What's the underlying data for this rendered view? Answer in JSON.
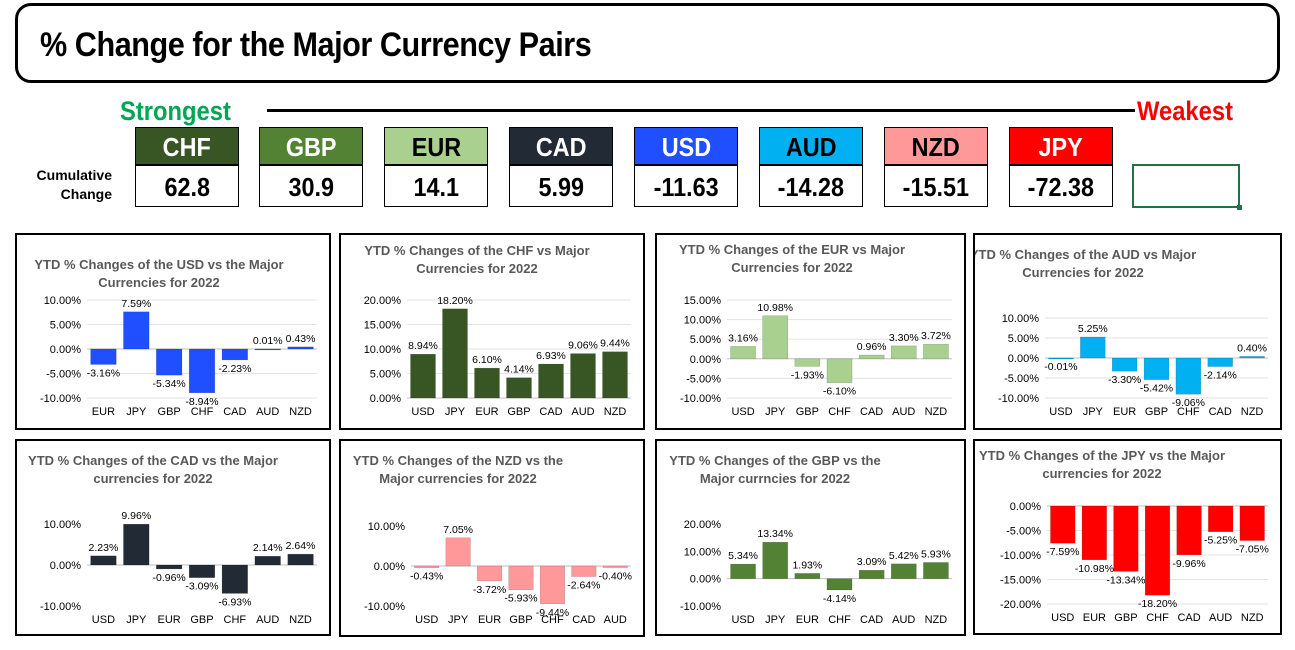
{
  "header": {
    "title": "% Change for the Major Currency Pairs",
    "strongest_label": "Strongest",
    "weakest_label": "Weakest",
    "cumulative_label_line1": "Cumulative",
    "cumulative_label_line2": "Change",
    "colors": {
      "strongest": "#00a651",
      "weakest": "#ff0000"
    }
  },
  "ranking": [
    {
      "code": "CHF",
      "value": "62.8",
      "bg": "#375623",
      "fg": "#ffffff"
    },
    {
      "code": "GBP",
      "value": "30.9",
      "bg": "#548235",
      "fg": "#ffffff"
    },
    {
      "code": "EUR",
      "value": "14.1",
      "bg": "#a9d08e",
      "fg": "#000000"
    },
    {
      "code": "CAD",
      "value": "5.99",
      "bg": "#222b35",
      "fg": "#ffffff"
    },
    {
      "code": "USD",
      "value": "-11.63",
      "bg": "#1f4fff",
      "fg": "#ffffff"
    },
    {
      "code": "AUD",
      "value": "-14.28",
      "bg": "#00b0f0",
      "fg": "#000000"
    },
    {
      "code": "NZD",
      "value": "-15.51",
      "bg": "#ff9999",
      "fg": "#000000"
    },
    {
      "code": "JPY",
      "value": "-72.38",
      "bg": "#ff0000",
      "fg": "#ffffff"
    }
  ],
  "chart_data": [
    {
      "type": "bar",
      "title_lines": [
        "YTD % Changes of the USD vs the Major",
        "Currencies for 2022"
      ],
      "categories": [
        "EUR",
        "JPY",
        "GBP",
        "CHF",
        "CAD",
        "AUD",
        "NZD"
      ],
      "values": [
        -3.16,
        7.59,
        -5.34,
        -8.94,
        -2.23,
        0.01,
        0.43
      ],
      "labels": [
        "-3.16%",
        "7.59%",
        "-5.34%",
        "-8.94%",
        "-2.23%",
        "0.01%",
        "0.43%"
      ],
      "ylim": [
        -10,
        10
      ],
      "yticks": [
        10,
        5,
        0,
        -5,
        -10
      ],
      "ytick_labels": [
        "10.00%",
        "5.00%",
        "0.00%",
        "-5.00%",
        "-10.00%"
      ],
      "color": "#1f4fff",
      "gridlines": true
    },
    {
      "type": "bar",
      "title_lines": [
        "YTD % Changes of the CHF vs Major",
        "Currencies for 2022"
      ],
      "categories": [
        "USD",
        "JPY",
        "EUR",
        "GBP",
        "CAD",
        "AUD",
        "NZD"
      ],
      "values": [
        8.94,
        18.2,
        6.1,
        4.14,
        6.93,
        9.06,
        9.44
      ],
      "labels": [
        "8.94%",
        "18.20%",
        "6.10%",
        "4.14%",
        "6.93%",
        "9.06%",
        "9.44%"
      ],
      "ylim": [
        0,
        20
      ],
      "yticks": [
        20,
        15,
        10,
        5,
        0
      ],
      "ytick_labels": [
        "20.00%",
        "15.00%",
        "10.00%",
        "5.00%",
        "0.00%"
      ],
      "color": "#375623",
      "gridlines": true
    },
    {
      "type": "bar",
      "title_lines": [
        "YTD % Changes of the EUR vs Major",
        "Currencies for 2022"
      ],
      "categories": [
        "USD",
        "JPY",
        "GBP",
        "CHF",
        "CAD",
        "AUD",
        "NZD"
      ],
      "values": [
        3.16,
        10.98,
        -1.93,
        -6.1,
        0.96,
        3.3,
        3.72
      ],
      "labels": [
        "3.16%",
        "10.98%",
        "-1.93%",
        "-6.10%",
        "0.96%",
        "3.30%",
        "3.72%"
      ],
      "ylim": [
        -10,
        15
      ],
      "yticks": [
        15,
        10,
        5,
        0,
        -5,
        -10
      ],
      "ytick_labels": [
        "15.00%",
        "10.00%",
        "5.00%",
        "0.00%",
        "-5.00%",
        "-10.00%"
      ],
      "color": "#a9d08e",
      "gridlines": true
    },
    {
      "type": "bar",
      "title_lines": [
        "YTD % Changes of the AUD vs Major",
        "Currencies for 2022"
      ],
      "categories": [
        "USD",
        "JPY",
        "EUR",
        "GBP",
        "CHF",
        "CAD",
        "NZD"
      ],
      "values": [
        -0.01,
        5.25,
        -3.3,
        -5.42,
        -9.06,
        -2.14,
        0.4
      ],
      "labels": [
        "-0.01%",
        "5.25%",
        "-3.30%",
        "-5.42%",
        "-9.06%",
        "-2.14%",
        "0.40%"
      ],
      "ylim": [
        -10,
        10
      ],
      "yticks": [
        10,
        5,
        0,
        -5,
        -10
      ],
      "ytick_labels": [
        "10.00%",
        "5.00%",
        "0.00%",
        "-5.00%",
        "-10.00%"
      ],
      "color": "#00b0f0",
      "gridlines": true
    },
    {
      "type": "bar",
      "title_lines": [
        "YTD % Changes of the CAD vs the Major",
        "currencies for 2022"
      ],
      "categories": [
        "USD",
        "JPY",
        "EUR",
        "GBP",
        "CHF",
        "AUD",
        "NZD"
      ],
      "values": [
        2.23,
        9.96,
        -0.96,
        -3.09,
        -6.93,
        2.14,
        2.64
      ],
      "labels": [
        "2.23%",
        "9.96%",
        "-0.96%",
        "-3.09%",
        "-6.93%",
        "2.14%",
        "2.64%"
      ],
      "ylim": [
        -10,
        10
      ],
      "yticks": [
        10,
        0,
        -10
      ],
      "ytick_labels": [
        "10.00%",
        "0.00%",
        "-10.00%"
      ],
      "color": "#222b35",
      "gridlines": false
    },
    {
      "type": "bar",
      "title_lines": [
        "YTD % Changes of the NZD vs the",
        "Major currencies for 2022"
      ],
      "categories": [
        "USD",
        "JPY",
        "EUR",
        "GBP",
        "CHF",
        "CAD",
        "AUD"
      ],
      "values": [
        -0.43,
        7.05,
        -3.72,
        -5.93,
        -9.44,
        -2.64,
        -0.4
      ],
      "labels": [
        "-0.43%",
        "7.05%",
        "-3.72%",
        "-5.93%",
        "-9.44%",
        "-2.64%",
        "-0.40%"
      ],
      "ylim": [
        -10,
        10
      ],
      "yticks": [
        10,
        0,
        -10
      ],
      "ytick_labels": [
        "10.00%",
        "0.00%",
        "-10.00%"
      ],
      "color": "#ff9999",
      "gridlines": false
    },
    {
      "type": "bar",
      "title_lines": [
        "YTD % Changes of the GBP vs the",
        "Major currncies for 2022"
      ],
      "categories": [
        "USD",
        "JPY",
        "EUR",
        "CHF",
        "CAD",
        "AUD",
        "NZD"
      ],
      "values": [
        5.34,
        13.34,
        1.93,
        -4.14,
        3.09,
        5.42,
        5.93
      ],
      "labels": [
        "5.34%",
        "13.34%",
        "1.93%",
        "-4.14%",
        "3.09%",
        "5.42%",
        "5.93%"
      ],
      "ylim": [
        -10,
        20
      ],
      "yticks": [
        20,
        10,
        0,
        -10
      ],
      "ytick_labels": [
        "20.00%",
        "10.00%",
        "0.00%",
        "-10.00%"
      ],
      "color": "#548235",
      "gridlines": false
    },
    {
      "type": "bar",
      "title_lines": [
        "YTD % Changes of the JPY vs the Major",
        "currencies for 2022"
      ],
      "categories": [
        "USD",
        "EUR",
        "GBP",
        "CHF",
        "CAD",
        "AUD",
        "NZD"
      ],
      "values": [
        -7.59,
        -10.98,
        -13.34,
        -18.2,
        -9.96,
        -5.25,
        -7.05
      ],
      "labels": [
        "-7.59%",
        "-10.98%",
        "-13.34%",
        "-18.20%",
        "-9.96%",
        "-5.25%",
        "-7.05%"
      ],
      "ylim": [
        -20,
        0
      ],
      "yticks": [
        0,
        -5,
        -10,
        -15,
        -20
      ],
      "ytick_labels": [
        "0.00%",
        "-5.00%",
        "-10.00%",
        "-15.00%",
        "-20.00%"
      ],
      "color": "#ff0000",
      "gridlines": true
    }
  ]
}
